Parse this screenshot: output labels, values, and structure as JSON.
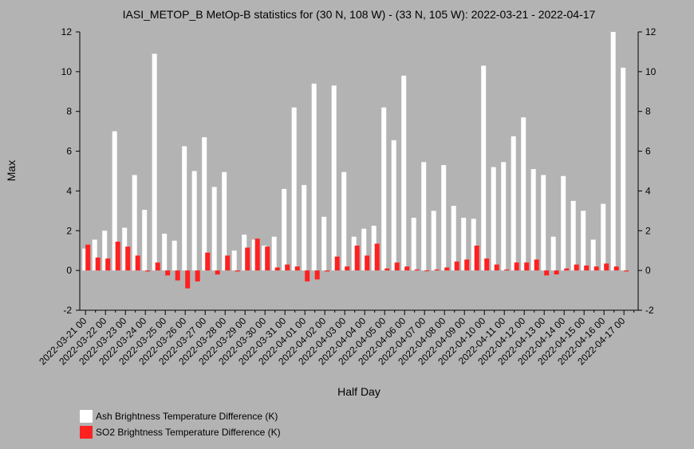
{
  "chart_data": {
    "type": "bar",
    "title": "IASI_METOP_B MetOp-B statistics for (30 N, 108 W) - (33 N, 105 W): 2022-03-21 - 2022-04-17",
    "xlabel": "Half Day",
    "ylabel": "Max",
    "ylim": [
      -2,
      12
    ],
    "yticks": [
      -2,
      0,
      2,
      4,
      6,
      8,
      10,
      12
    ],
    "grid": false,
    "legend_position": "bottom-left",
    "tick_labels": [
      "2022-03-21 00",
      "2022-03-22 00",
      "2022-03-23 00",
      "2022-03-24 00",
      "2022-03-25 00",
      "2022-03-26 00",
      "2022-03-27 00",
      "2022-03-28 00",
      "2022-03-29 00",
      "2022-03-30 00",
      "2022-03-31 00",
      "2022-04-01 00",
      "2022-04-02 00",
      "2022-04-03 00",
      "2022-04-04 00",
      "2022-04-05 00",
      "2022-04-06 00",
      "2022-04-07 00",
      "2022-04-08 00",
      "2022-04-09 00",
      "2022-04-10 00",
      "2022-04-11 00",
      "2022-04-12 00",
      "2022-04-13 00",
      "2022-04-14 00",
      "2022-04-15 00",
      "2022-04-16 00",
      "2022-04-17 00"
    ],
    "series": [
      {
        "name": "Ash Brightness Temperature Difference (K)",
        "color": "#ffffff",
        "values": [
          1.1,
          1.55,
          2.0,
          7.0,
          2.15,
          4.8,
          3.05,
          10.9,
          1.85,
          1.5,
          6.25,
          5.0,
          6.7,
          4.2,
          4.95,
          1.0,
          1.8,
          1.55,
          1.25,
          1.7,
          4.1,
          8.2,
          4.3,
          9.4,
          2.7,
          9.3,
          4.95,
          1.7,
          2.1,
          2.25,
          8.2,
          6.55,
          9.8,
          2.65,
          5.45,
          3.0,
          5.3,
          3.25,
          2.65,
          2.6,
          10.3,
          5.2,
          5.45,
          6.75,
          7.7,
          5.1,
          4.8,
          1.7,
          4.75,
          3.5,
          3.0,
          1.55,
          3.35,
          12.0,
          10.2
        ]
      },
      {
        "name": "SO2 Brightness Temperature Difference (K)",
        "color": "#ff2020",
        "values": [
          1.3,
          0.65,
          0.6,
          1.45,
          1.2,
          0.75,
          -0.05,
          0.4,
          -0.25,
          -0.5,
          -0.9,
          -0.55,
          0.9,
          -0.2,
          0.75,
          -0.05,
          1.15,
          1.6,
          1.2,
          0.15,
          0.3,
          0.2,
          -0.55,
          -0.45,
          -0.05,
          0.7,
          0.2,
          1.25,
          0.75,
          1.35,
          0.1,
          0.4,
          0.2,
          0.05,
          0.0,
          0.05,
          0.15,
          0.45,
          0.55,
          1.25,
          0.6,
          0.3,
          0.05,
          0.4,
          0.4,
          0.55,
          -0.25,
          -0.2,
          0.1,
          0.3,
          0.25,
          0.2,
          0.35,
          0.2,
          -0.05
        ]
      }
    ]
  },
  "legend": {
    "items": [
      {
        "label": "Ash Brightness Temperature Difference (K)",
        "color": "#ffffff"
      },
      {
        "label": "SO2 Brightness Temperature Difference (K)",
        "color": "#ff2020"
      }
    ]
  }
}
